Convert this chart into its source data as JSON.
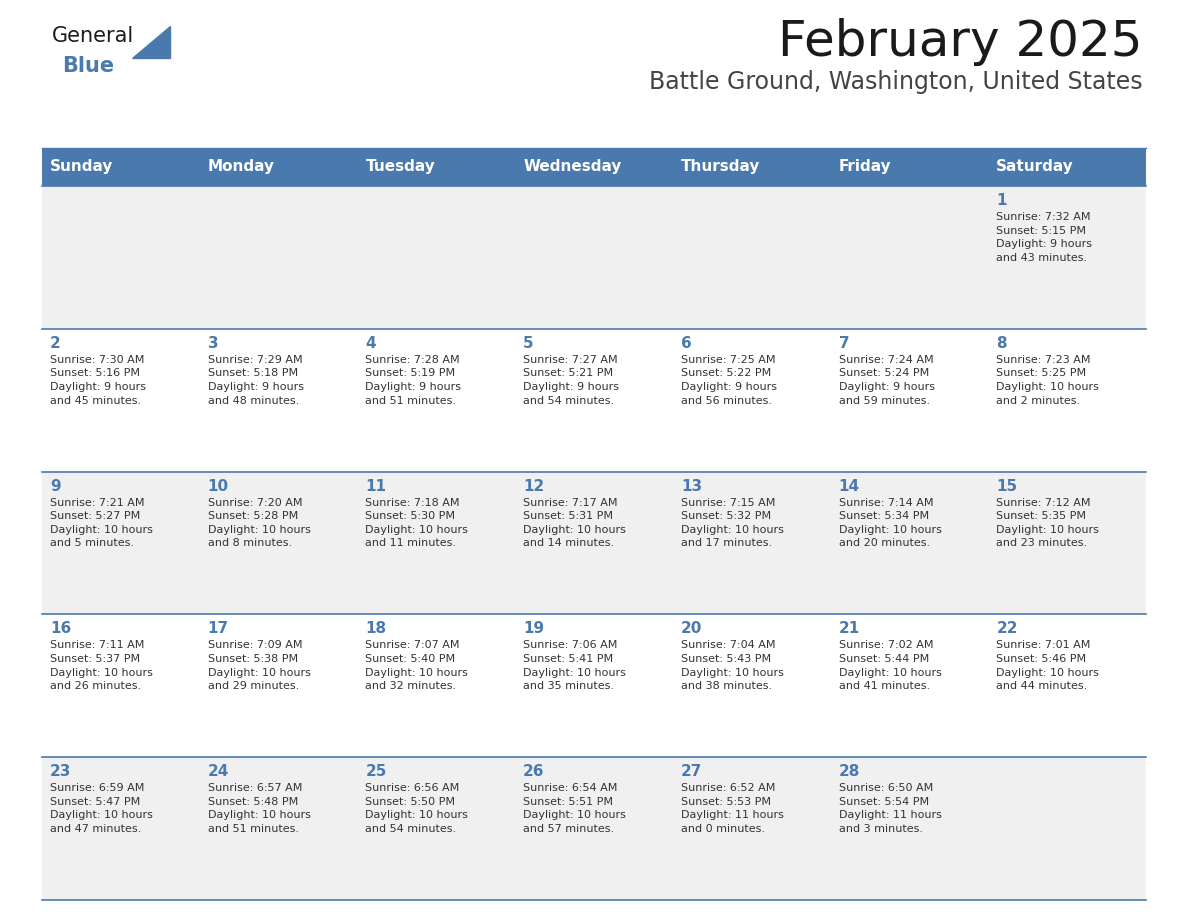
{
  "title": "February 2025",
  "subtitle": "Battle Ground, Washington, United States",
  "header_bg_color": "#4a7aad",
  "header_text_color": "#ffffff",
  "row_bg_even": "#f0f0f0",
  "row_bg_odd": "#ffffff",
  "day_number_color": "#4a7aad",
  "text_color": "#333333",
  "line_color": "#4a7aad",
  "days_of_week": [
    "Sunday",
    "Monday",
    "Tuesday",
    "Wednesday",
    "Thursday",
    "Friday",
    "Saturday"
  ],
  "calendar_data": [
    [
      null,
      null,
      null,
      null,
      null,
      null,
      {
        "day": "1",
        "sunrise": "7:32 AM",
        "sunset": "5:15 PM",
        "daylight": "9 hours\nand 43 minutes."
      }
    ],
    [
      {
        "day": "2",
        "sunrise": "7:30 AM",
        "sunset": "5:16 PM",
        "daylight": "9 hours\nand 45 minutes."
      },
      {
        "day": "3",
        "sunrise": "7:29 AM",
        "sunset": "5:18 PM",
        "daylight": "9 hours\nand 48 minutes."
      },
      {
        "day": "4",
        "sunrise": "7:28 AM",
        "sunset": "5:19 PM",
        "daylight": "9 hours\nand 51 minutes."
      },
      {
        "day": "5",
        "sunrise": "7:27 AM",
        "sunset": "5:21 PM",
        "daylight": "9 hours\nand 54 minutes."
      },
      {
        "day": "6",
        "sunrise": "7:25 AM",
        "sunset": "5:22 PM",
        "daylight": "9 hours\nand 56 minutes."
      },
      {
        "day": "7",
        "sunrise": "7:24 AM",
        "sunset": "5:24 PM",
        "daylight": "9 hours\nand 59 minutes."
      },
      {
        "day": "8",
        "sunrise": "7:23 AM",
        "sunset": "5:25 PM",
        "daylight": "10 hours\nand 2 minutes."
      }
    ],
    [
      {
        "day": "9",
        "sunrise": "7:21 AM",
        "sunset": "5:27 PM",
        "daylight": "10 hours\nand 5 minutes."
      },
      {
        "day": "10",
        "sunrise": "7:20 AM",
        "sunset": "5:28 PM",
        "daylight": "10 hours\nand 8 minutes."
      },
      {
        "day": "11",
        "sunrise": "7:18 AM",
        "sunset": "5:30 PM",
        "daylight": "10 hours\nand 11 minutes."
      },
      {
        "day": "12",
        "sunrise": "7:17 AM",
        "sunset": "5:31 PM",
        "daylight": "10 hours\nand 14 minutes."
      },
      {
        "day": "13",
        "sunrise": "7:15 AM",
        "sunset": "5:32 PM",
        "daylight": "10 hours\nand 17 minutes."
      },
      {
        "day": "14",
        "sunrise": "7:14 AM",
        "sunset": "5:34 PM",
        "daylight": "10 hours\nand 20 minutes."
      },
      {
        "day": "15",
        "sunrise": "7:12 AM",
        "sunset": "5:35 PM",
        "daylight": "10 hours\nand 23 minutes."
      }
    ],
    [
      {
        "day": "16",
        "sunrise": "7:11 AM",
        "sunset": "5:37 PM",
        "daylight": "10 hours\nand 26 minutes."
      },
      {
        "day": "17",
        "sunrise": "7:09 AM",
        "sunset": "5:38 PM",
        "daylight": "10 hours\nand 29 minutes."
      },
      {
        "day": "18",
        "sunrise": "7:07 AM",
        "sunset": "5:40 PM",
        "daylight": "10 hours\nand 32 minutes."
      },
      {
        "day": "19",
        "sunrise": "7:06 AM",
        "sunset": "5:41 PM",
        "daylight": "10 hours\nand 35 minutes."
      },
      {
        "day": "20",
        "sunrise": "7:04 AM",
        "sunset": "5:43 PM",
        "daylight": "10 hours\nand 38 minutes."
      },
      {
        "day": "21",
        "sunrise": "7:02 AM",
        "sunset": "5:44 PM",
        "daylight": "10 hours\nand 41 minutes."
      },
      {
        "day": "22",
        "sunrise": "7:01 AM",
        "sunset": "5:46 PM",
        "daylight": "10 hours\nand 44 minutes."
      }
    ],
    [
      {
        "day": "23",
        "sunrise": "6:59 AM",
        "sunset": "5:47 PM",
        "daylight": "10 hours\nand 47 minutes."
      },
      {
        "day": "24",
        "sunrise": "6:57 AM",
        "sunset": "5:48 PM",
        "daylight": "10 hours\nand 51 minutes."
      },
      {
        "day": "25",
        "sunrise": "6:56 AM",
        "sunset": "5:50 PM",
        "daylight": "10 hours\nand 54 minutes."
      },
      {
        "day": "26",
        "sunrise": "6:54 AM",
        "sunset": "5:51 PM",
        "daylight": "10 hours\nand 57 minutes."
      },
      {
        "day": "27",
        "sunrise": "6:52 AM",
        "sunset": "5:53 PM",
        "daylight": "11 hours\nand 0 minutes."
      },
      {
        "day": "28",
        "sunrise": "6:50 AM",
        "sunset": "5:54 PM",
        "daylight": "11 hours\nand 3 minutes."
      },
      null
    ]
  ],
  "title_fontsize": 36,
  "subtitle_fontsize": 17,
  "header_fontsize": 11,
  "day_num_fontsize": 11,
  "cell_text_fontsize": 8,
  "logo_general_fontsize": 15,
  "logo_blue_fontsize": 15
}
